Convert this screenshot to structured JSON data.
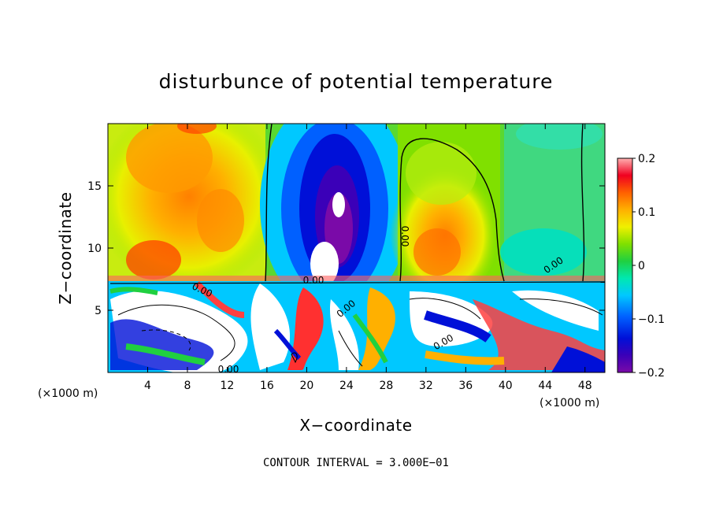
{
  "chart_data": {
    "type": "heatmap",
    "title": "disturbunce of potential temperature",
    "xlabel": "X−coordinate",
    "ylabel": "Z−coordinate",
    "x_unit_label": "(×1000 m)",
    "x_unit_label_right": "(×1000 m)",
    "xlim": [
      0,
      50
    ],
    "ylim": [
      0,
      20
    ],
    "x_ticks": [
      4,
      8,
      12,
      16,
      20,
      24,
      28,
      32,
      36,
      40,
      44,
      48
    ],
    "x_tick_labels": [
      "4",
      "8",
      "12",
      "16",
      "20",
      "24",
      "28",
      "32",
      "36",
      "40",
      "44",
      "48"
    ],
    "y_ticks": [
      5,
      10,
      15
    ],
    "y_tick_labels": [
      "5",
      "10",
      "15"
    ],
    "colorbar": {
      "min": -0.2,
      "max": 0.2,
      "ticks": [
        0.2,
        0.1,
        0,
        -0.1,
        -0.2
      ],
      "tick_labels": [
        "0.2",
        "0.1",
        "0",
        "−0.1",
        "−0.2"
      ]
    },
    "contour_labels": [
      "0.00",
      "0.00",
      "0.00",
      "0.00",
      "0.00",
      "0.00",
      "0.00"
    ],
    "contour_interval_text": "CONTOUR INTERVAL = 3.000E−01",
    "upper_layer": {
      "z_range": [
        7.5,
        20
      ],
      "features": [
        {
          "kind": "warm",
          "x_range": [
            2,
            14
          ],
          "peak": 0.12
        },
        {
          "kind": "cold",
          "x_range": [
            16,
            28
          ],
          "peak": -0.2
        },
        {
          "kind": "warm",
          "x_range": [
            30,
            40
          ],
          "peak": 0.1
        },
        {
          "kind": "neutral",
          "x_range": [
            40,
            50
          ],
          "peak": -0.04
        }
      ]
    },
    "lower_layer": {
      "z_range": [
        0,
        7.5
      ],
      "description": "turbulent mixed layer, values beyond colorbar range shown white"
    },
    "grid": false
  }
}
